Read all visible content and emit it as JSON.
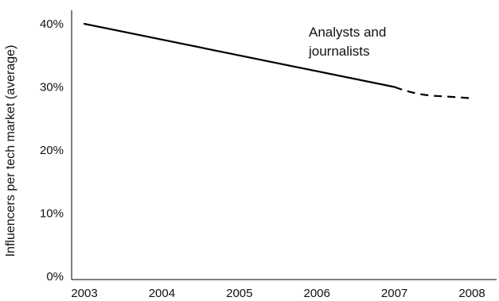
{
  "chart_data": {
    "type": "line",
    "title": "",
    "xlabel": "",
    "ylabel": "Influencers per tech market (average)",
    "categories": [
      "2003",
      "2004",
      "2005",
      "2006",
      "2007",
      "2008"
    ],
    "y_ticks": [
      "0%",
      "10%",
      "20%",
      "30%",
      "40%"
    ],
    "ylim": [
      0,
      42
    ],
    "grid": false,
    "series": [
      {
        "name": "Analysts and journalists",
        "x": [
          2003,
          2007,
          2007.5,
          2008
        ],
        "values": [
          40,
          30,
          28.6,
          28.2
        ],
        "segment_style": [
          "solid",
          "solid",
          "dashed",
          "dashed"
        ]
      }
    ],
    "annotations": [
      {
        "text": [
          "Analysts and",
          "journalists"
        ]
      }
    ],
    "colors": {
      "line": "#000000",
      "axis": "#000000",
      "text": "#111111"
    }
  }
}
